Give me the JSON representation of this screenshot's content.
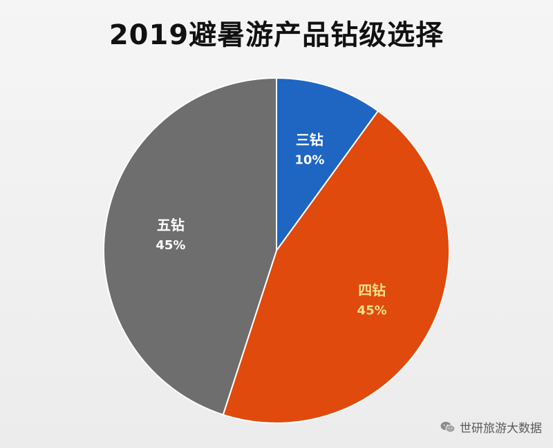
{
  "chart_data": {
    "type": "pie",
    "title": "2019避暑游产品钻级选择",
    "start_angle_deg": 0,
    "direction": "clockwise",
    "slices": [
      {
        "label": "三钻",
        "value": 10,
        "value_label": "10%",
        "color": "#1f66c2",
        "label_color": "#ffffff"
      },
      {
        "label": "四钻",
        "value": 45,
        "value_label": "45%",
        "color": "#e04a0c",
        "label_color": "#f6e08a"
      },
      {
        "label": "五钻",
        "value": 45,
        "value_label": "45%",
        "color": "#6e6e6e",
        "label_color": "#ffffff"
      }
    ]
  },
  "watermark": {
    "text": "世研旅游大数据",
    "icon": "wechat-icon"
  }
}
